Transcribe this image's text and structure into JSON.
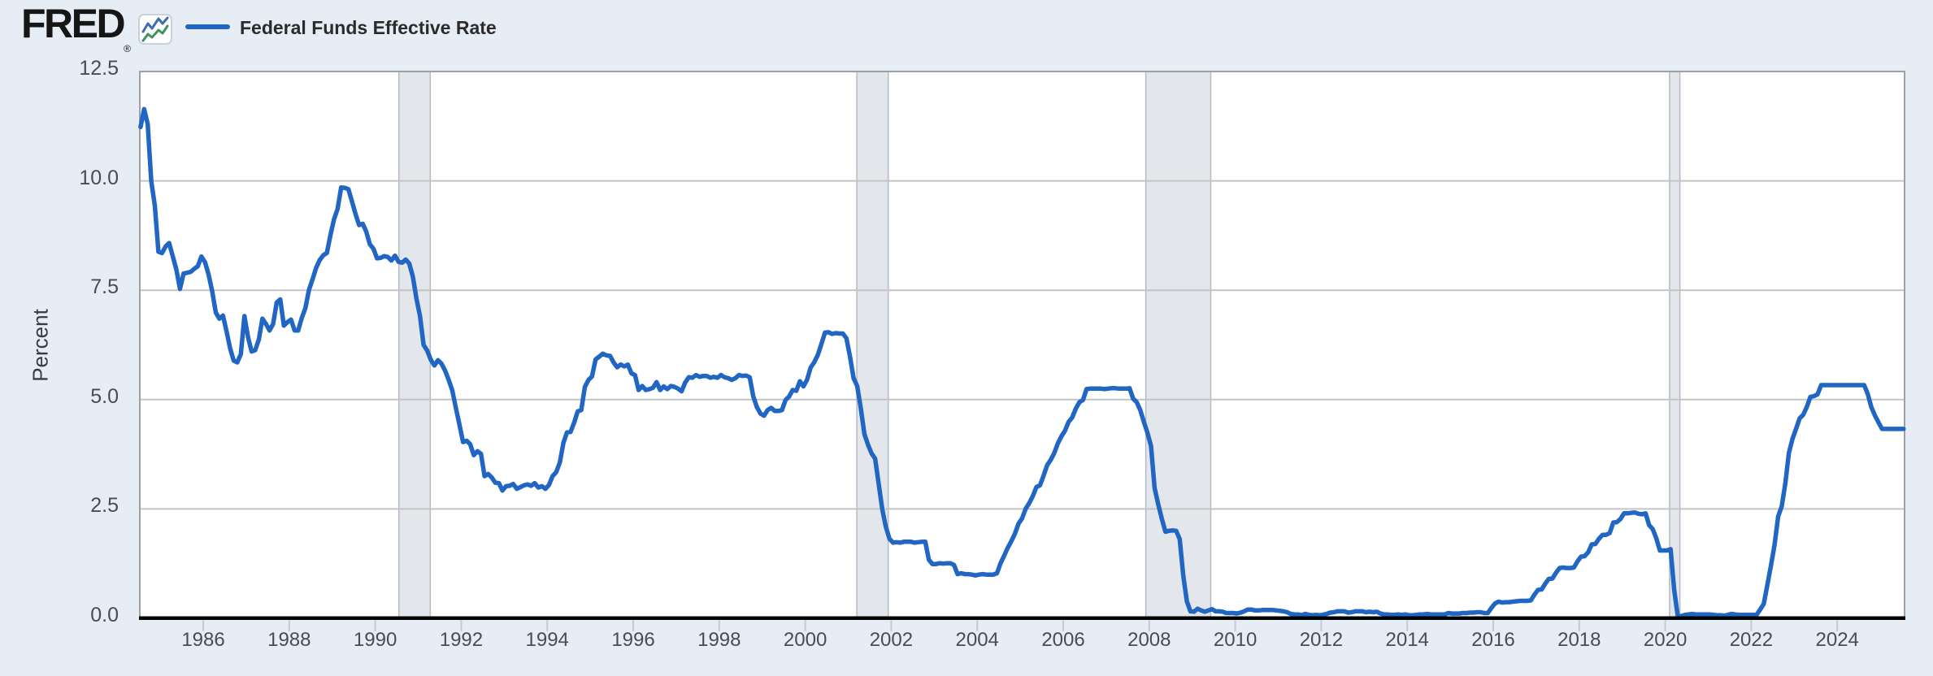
{
  "header": {
    "logo_text": "FRED",
    "registered_mark": "®",
    "legend_label": "Federal Funds Effective Rate"
  },
  "axes": {
    "y_label": "Percent",
    "y_ticks": [
      {
        "label": "0.0",
        "value": 0
      },
      {
        "label": "2.5",
        "value": 2.5
      },
      {
        "label": "5.0",
        "value": 5
      },
      {
        "label": "7.5",
        "value": 7.5
      },
      {
        "label": "10.0",
        "value": 10
      },
      {
        "label": "12.5",
        "value": 12.5
      }
    ],
    "x_ticks": [
      {
        "label": "1986",
        "value": 1986
      },
      {
        "label": "1988",
        "value": 1988
      },
      {
        "label": "1990",
        "value": 1990
      },
      {
        "label": "1992",
        "value": 1992
      },
      {
        "label": "1994",
        "value": 1994
      },
      {
        "label": "1996",
        "value": 1996
      },
      {
        "label": "1998",
        "value": 1998
      },
      {
        "label": "2000",
        "value": 2000
      },
      {
        "label": "2002",
        "value": 2002
      },
      {
        "label": "2004",
        "value": 2004
      },
      {
        "label": "2006",
        "value": 2006
      },
      {
        "label": "2008",
        "value": 2008
      },
      {
        "label": "2010",
        "value": 2010
      },
      {
        "label": "2012",
        "value": 2012
      },
      {
        "label": "2014",
        "value": 2014
      },
      {
        "label": "2016",
        "value": 2016
      },
      {
        "label": "2018",
        "value": 2018
      },
      {
        "label": "2020",
        "value": 2020
      },
      {
        "label": "2022",
        "value": 2022
      },
      {
        "label": "2024",
        "value": 2024
      }
    ]
  },
  "colors": {
    "background": "#e6edf5",
    "plot_background": "#ffffff",
    "line": "#2266c4",
    "gridline": "#c4c4c4",
    "plot_border": "#9aa1aa",
    "recession_fill": "#e3e6ea",
    "recession_edge": "#b4bac2",
    "axis_line": "#000000",
    "tick_mark": "#c3cad2",
    "tick_label": "#474d55",
    "legend_text": "#2b2b2b",
    "logo_text": "#161616",
    "icon_blue": "#3e6db5",
    "icon_green": "#3f9360"
  },
  "chart_data": {
    "type": "line",
    "title": "Federal Funds Effective Rate",
    "xlabel": "",
    "ylabel": "Percent",
    "xlim": [
      1984.525,
      2025.565
    ],
    "ylim": [
      0,
      12.5
    ],
    "grid": "horizontal",
    "legend_position": "top-left",
    "recession_bands": [
      [
        1990.55,
        1991.28
      ],
      [
        2001.2,
        2001.93
      ],
      [
        2007.92,
        2009.43
      ],
      [
        2020.1,
        2020.34
      ]
    ],
    "series": [
      {
        "name": "Federal Funds Effective Rate",
        "frequency": "monthly",
        "start_year": 1984,
        "start_month": 7,
        "values": [
          11.23,
          11.64,
          11.3,
          9.99,
          9.43,
          8.38,
          8.35,
          8.5,
          8.58,
          8.27,
          7.97,
          7.53,
          7.88,
          7.9,
          7.92,
          7.99,
          8.05,
          8.27,
          8.14,
          7.86,
          7.48,
          6.99,
          6.85,
          6.92,
          6.56,
          6.17,
          5.89,
          5.85,
          6.04,
          6.91,
          6.43,
          6.1,
          6.13,
          6.37,
          6.85,
          6.73,
          6.58,
          6.73,
          7.22,
          7.29,
          6.69,
          6.77,
          6.83,
          6.58,
          6.58,
          6.87,
          7.09,
          7.51,
          7.75,
          8.01,
          8.19,
          8.3,
          8.35,
          8.76,
          9.12,
          9.36,
          9.85,
          9.84,
          9.81,
          9.53,
          9.24,
          8.99,
          9.02,
          8.84,
          8.55,
          8.45,
          8.23,
          8.24,
          8.28,
          8.26,
          8.18,
          8.29,
          8.15,
          8.13,
          8.2,
          8.11,
          7.81,
          7.31,
          6.91,
          6.25,
          6.12,
          5.91,
          5.78,
          5.9,
          5.82,
          5.66,
          5.45,
          5.21,
          4.81,
          4.43,
          4.03,
          4.06,
          3.98,
          3.73,
          3.82,
          3.76,
          3.25,
          3.3,
          3.22,
          3.1,
          3.09,
          2.92,
          3.02,
          3.03,
          3.07,
          2.96,
          3.0,
          3.04,
          3.06,
          3.03,
          3.09,
          2.99,
          3.02,
          2.96,
          3.05,
          3.25,
          3.34,
          3.56,
          4.01,
          4.25,
          4.26,
          4.47,
          4.73,
          4.76,
          5.29,
          5.45,
          5.53,
          5.92,
          5.98,
          6.05,
          6.01,
          6.0,
          5.85,
          5.74,
          5.8,
          5.76,
          5.8,
          5.6,
          5.56,
          5.22,
          5.31,
          5.22,
          5.24,
          5.27,
          5.4,
          5.22,
          5.3,
          5.24,
          5.31,
          5.29,
          5.25,
          5.19,
          5.39,
          5.51,
          5.5,
          5.56,
          5.52,
          5.54,
          5.54,
          5.5,
          5.52,
          5.5,
          5.56,
          5.51,
          5.49,
          5.45,
          5.49,
          5.56,
          5.54,
          5.55,
          5.51,
          5.07,
          4.83,
          4.68,
          4.63,
          4.76,
          4.81,
          4.74,
          4.74,
          4.76,
          4.99,
          5.07,
          5.22,
          5.2,
          5.42,
          5.3,
          5.45,
          5.73,
          5.85,
          6.02,
          6.27,
          6.53,
          6.54,
          6.5,
          6.52,
          6.51,
          6.51,
          6.4,
          5.98,
          5.49,
          5.31,
          4.8,
          4.21,
          3.97,
          3.77,
          3.65,
          3.07,
          2.49,
          2.09,
          1.82,
          1.73,
          1.74,
          1.73,
          1.75,
          1.75,
          1.75,
          1.73,
          1.74,
          1.75,
          1.75,
          1.34,
          1.24,
          1.24,
          1.26,
          1.25,
          1.26,
          1.26,
          1.22,
          1.01,
          1.03,
          1.01,
          1.01,
          1.0,
          0.98,
          1.0,
          1.01,
          1.0,
          1.0,
          1.0,
          1.03,
          1.26,
          1.43,
          1.61,
          1.76,
          1.93,
          2.16,
          2.28,
          2.5,
          2.63,
          2.79,
          3.0,
          3.04,
          3.26,
          3.5,
          3.62,
          3.78,
          4.0,
          4.16,
          4.29,
          4.49,
          4.59,
          4.79,
          4.94,
          4.99,
          5.24,
          5.25,
          5.25,
          5.25,
          5.25,
          5.24,
          5.25,
          5.26,
          5.26,
          5.25,
          5.25,
          5.25,
          5.26,
          5.02,
          4.94,
          4.76,
          4.49,
          4.24,
          3.94,
          2.98,
          2.61,
          2.28,
          1.98,
          2.0,
          2.01,
          2.0,
          1.81,
          0.97,
          0.39,
          0.16,
          0.15,
          0.22,
          0.18,
          0.15,
          0.18,
          0.21,
          0.16,
          0.16,
          0.15,
          0.12,
          0.12,
          0.12,
          0.11,
          0.13,
          0.16,
          0.2,
          0.2,
          0.18,
          0.18,
          0.19,
          0.19,
          0.19,
          0.19,
          0.18,
          0.17,
          0.16,
          0.14,
          0.1,
          0.09,
          0.09,
          0.07,
          0.1,
          0.08,
          0.07,
          0.08,
          0.07,
          0.08,
          0.1,
          0.13,
          0.14,
          0.16,
          0.16,
          0.16,
          0.13,
          0.14,
          0.16,
          0.16,
          0.16,
          0.14,
          0.15,
          0.14,
          0.15,
          0.11,
          0.09,
          0.09,
          0.08,
          0.08,
          0.09,
          0.08,
          0.09,
          0.07,
          0.07,
          0.08,
          0.09,
          0.09,
          0.1,
          0.09,
          0.09,
          0.09,
          0.09,
          0.09,
          0.12,
          0.11,
          0.11,
          0.11,
          0.12,
          0.12,
          0.13,
          0.13,
          0.14,
          0.14,
          0.12,
          0.12,
          0.24,
          0.34,
          0.38,
          0.36,
          0.37,
          0.37,
          0.38,
          0.39,
          0.4,
          0.4,
          0.4,
          0.41,
          0.54,
          0.65,
          0.66,
          0.79,
          0.9,
          0.91,
          1.04,
          1.15,
          1.16,
          1.15,
          1.15,
          1.16,
          1.3,
          1.41,
          1.42,
          1.51,
          1.69,
          1.7,
          1.82,
          1.91,
          1.91,
          1.95,
          2.19,
          2.2,
          2.27,
          2.4,
          2.4,
          2.41,
          2.42,
          2.39,
          2.38,
          2.4,
          2.13,
          2.04,
          1.83,
          1.55,
          1.55,
          1.55,
          1.58,
          0.65,
          0.05,
          0.05,
          0.08,
          0.09,
          0.1,
          0.09,
          0.09,
          0.09,
          0.09,
          0.09,
          0.08,
          0.07,
          0.07,
          0.06,
          0.08,
          0.1,
          0.09,
          0.08,
          0.08,
          0.08,
          0.08,
          0.08,
          0.08,
          0.2,
          0.33,
          0.77,
          1.21,
          1.68,
          2.33,
          2.56,
          3.08,
          3.78,
          4.1,
          4.33,
          4.57,
          4.65,
          4.83,
          5.06,
          5.08,
          5.12,
          5.33,
          5.33,
          5.33,
          5.33,
          5.33,
          5.33,
          5.33,
          5.33,
          5.33,
          5.33,
          5.33,
          5.33,
          5.33,
          5.13,
          4.83,
          4.64,
          4.48,
          4.33,
          4.33,
          4.33,
          4.33,
          4.33,
          4.33,
          4.33
        ]
      }
    ]
  }
}
